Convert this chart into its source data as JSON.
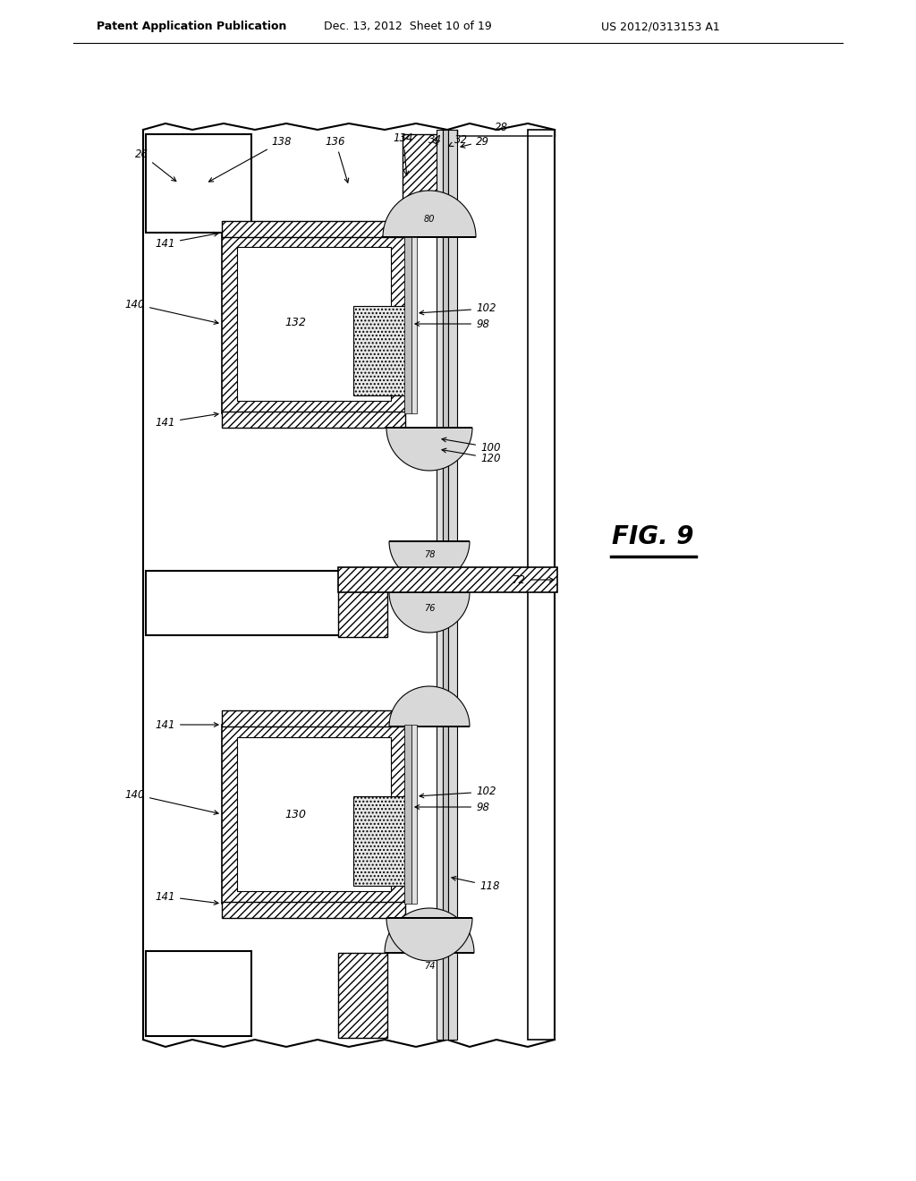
{
  "title_line1": "Patent Application Publication",
  "title_line2": "Dec. 13, 2012  Sheet 10 of 19",
  "title_line3": "US 2012/0313153 A1",
  "fig_label": "FIG. 9",
  "background": "#ffffff"
}
